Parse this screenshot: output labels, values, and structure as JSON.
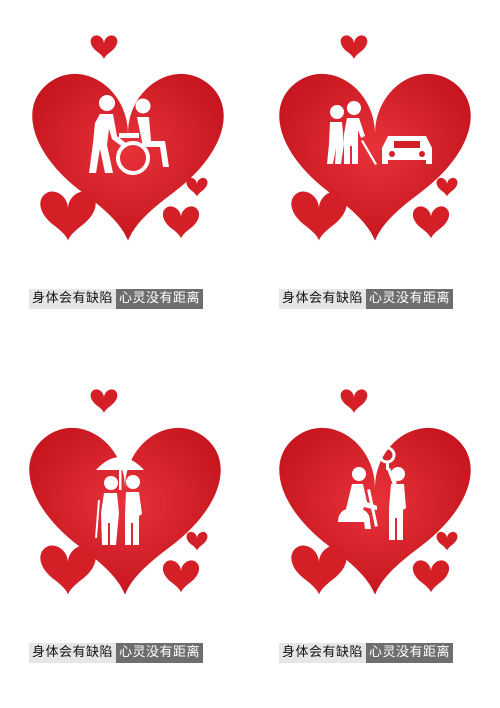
{
  "panels": [
    {
      "icon": "wheelchair-assist-icon",
      "caption_left": "身体会有缺陷",
      "caption_right": "心灵没有距离"
    },
    {
      "icon": "blind-guide-car-icon",
      "caption_left": "身体会有缺陷",
      "caption_right": "心灵没有距离"
    },
    {
      "icon": "umbrella-cane-icon",
      "caption_left": "身体会有缺陷",
      "caption_right": "心灵没有距离"
    },
    {
      "icon": "crutch-bus-handle-icon",
      "caption_left": "身体会有缺陷",
      "caption_right": "心灵没有距离"
    }
  ],
  "colors": {
    "heart_red": "#d41f27",
    "heart_dark": "#b5121b",
    "caption_light_bg": "#e6e6e6",
    "caption_dark_bg": "#6e6e6e"
  }
}
